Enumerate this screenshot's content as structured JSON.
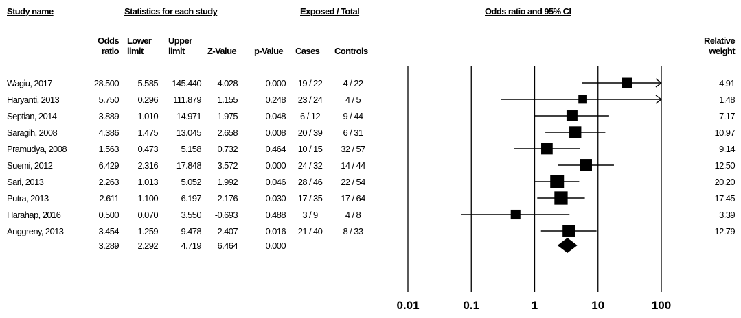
{
  "headers": {
    "study_name": "Study name",
    "statistics": "Statistics for each study",
    "exposed_total": "Exposed / Total",
    "or_ci": "Odds ratio and 95% CI",
    "odds_ratio": [
      "Odds",
      "ratio"
    ],
    "lower_limit": [
      "Lower",
      "limit"
    ],
    "upper_limit": [
      "Upper",
      "limit"
    ],
    "z_value": "Z-Value",
    "p_value": "p-Value",
    "cases": "Cases",
    "controls": "Controls",
    "relative_weight": [
      "Relative",
      "weight"
    ]
  },
  "rows": [
    {
      "name": "Wagiu, 2017",
      "or": "28.500",
      "lower": "5.585",
      "upper": "145.440",
      "z": "4.028",
      "p": "0.000",
      "cases": "19 / 22",
      "controls": "4 / 22",
      "weight": "4.91"
    },
    {
      "name": "Haryanti, 2013",
      "or": "5.750",
      "lower": "0.296",
      "upper": "111.879",
      "z": "1.155",
      "p": "0.248",
      "cases": "23 / 24",
      "controls": "4 / 5",
      "weight": "1.48"
    },
    {
      "name": "Septian, 2014",
      "or": "3.889",
      "lower": "1.010",
      "upper": "14.971",
      "z": "1.975",
      "p": "0.048",
      "cases": "6 / 12",
      "controls": "9 / 44",
      "weight": "7.17"
    },
    {
      "name": "Saragih, 2008",
      "or": "4.386",
      "lower": "1.475",
      "upper": "13.045",
      "z": "2.658",
      "p": "0.008",
      "cases": "20 / 39",
      "controls": "6 / 31",
      "weight": "10.97"
    },
    {
      "name": "Pramudya, 2008",
      "or": "1.563",
      "lower": "0.473",
      "upper": "5.158",
      "z": "0.732",
      "p": "0.464",
      "cases": "10 / 15",
      "controls": "32 / 57",
      "weight": "9.14"
    },
    {
      "name": "Suemi, 2012",
      "or": "6.429",
      "lower": "2.316",
      "upper": "17.848",
      "z": "3.572",
      "p": "0.000",
      "cases": "24 / 32",
      "controls": "14 / 44",
      "weight": "12.50"
    },
    {
      "name": "Sari, 2013",
      "or": "2.263",
      "lower": "1.013",
      "upper": "5.052",
      "z": "1.992",
      "p": "0.046",
      "cases": "28 / 46",
      "controls": "22 / 54",
      "weight": "20.20"
    },
    {
      "name": "Putra, 2013",
      "or": "2.611",
      "lower": "1.100",
      "upper": "6.197",
      "z": "2.176",
      "p": "0.030",
      "cases": "17 / 35",
      "controls": "17 / 64",
      "weight": "17.45"
    },
    {
      "name": "Harahap, 2016",
      "or": "0.500",
      "lower": "0.070",
      "upper": "3.550",
      "z": "-0.693",
      "p": "0.488",
      "cases": "3 / 9",
      "controls": "4 / 8",
      "weight": "3.39"
    },
    {
      "name": "Anggreny, 2013",
      "or": "3.454",
      "lower": "1.259",
      "upper": "9.478",
      "z": "2.407",
      "p": "0.016",
      "cases": "21 / 40",
      "controls": "8 / 33",
      "weight": "12.79"
    }
  ],
  "summary": {
    "or": "3.289",
    "lower": "2.292",
    "upper": "4.719",
    "z": "6.464",
    "p": "0.000"
  },
  "chart_data": {
    "type": "forest",
    "scale": "log",
    "xlim": [
      0.01,
      100
    ],
    "ticks": [
      0.01,
      0.1,
      1,
      10,
      100
    ],
    "tick_labels": [
      "0.01",
      "0.1",
      "1",
      "10",
      "100"
    ],
    "title": "Odds ratio and 95% CI",
    "studies": [
      {
        "name": "Wagiu, 2017",
        "or": 28.5,
        "lower": 5.585,
        "upper": 145.44,
        "weight": 4.91
      },
      {
        "name": "Haryanti, 2013",
        "or": 5.75,
        "lower": 0.296,
        "upper": 111.879,
        "weight": 1.48
      },
      {
        "name": "Septian, 2014",
        "or": 3.889,
        "lower": 1.01,
        "upper": 14.971,
        "weight": 7.17
      },
      {
        "name": "Saragih, 2008",
        "or": 4.386,
        "lower": 1.475,
        "upper": 13.045,
        "weight": 10.97
      },
      {
        "name": "Pramudya, 2008",
        "or": 1.563,
        "lower": 0.473,
        "upper": 5.158,
        "weight": 9.14
      },
      {
        "name": "Suemi, 2012",
        "or": 6.429,
        "lower": 2.316,
        "upper": 17.848,
        "weight": 12.5
      },
      {
        "name": "Sari, 2013",
        "or": 2.263,
        "lower": 1.013,
        "upper": 5.052,
        "weight": 20.2
      },
      {
        "name": "Putra, 2013",
        "or": 2.611,
        "lower": 1.1,
        "upper": 6.197,
        "weight": 17.45
      },
      {
        "name": "Harahap, 2016",
        "or": 0.5,
        "lower": 0.07,
        "upper": 3.55,
        "weight": 3.39
      },
      {
        "name": "Anggreny, 2013",
        "or": 3.454,
        "lower": 1.259,
        "upper": 9.478,
        "weight": 12.79
      }
    ],
    "summary": {
      "or": 3.289,
      "lower": 2.292,
      "upper": 4.719
    },
    "colors": {
      "marks": "#000000"
    }
  }
}
